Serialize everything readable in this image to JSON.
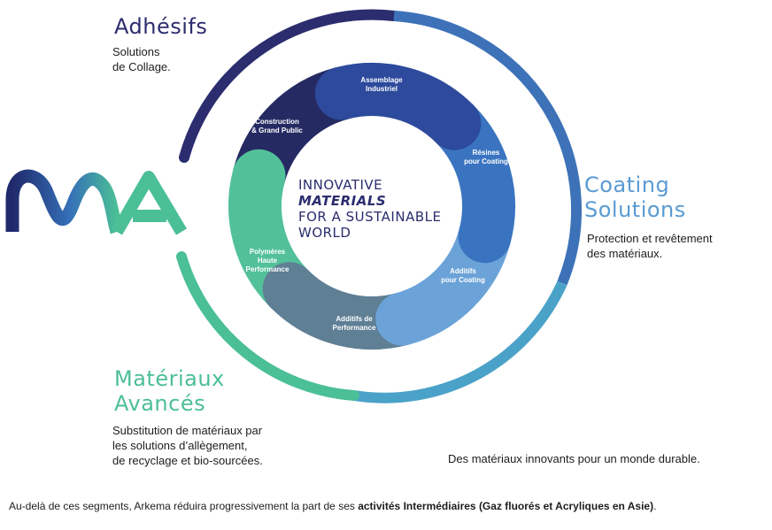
{
  "segments": {
    "adhesifs": {
      "title": "Adhésifs",
      "description": [
        "Solutions",
        "de Collage."
      ],
      "color": "#2b2d6e"
    },
    "coating": {
      "title": [
        "Coating",
        "Solutions"
      ],
      "description": [
        "Protection et revêtement",
        "des matériaux."
      ],
      "color": "#5a9bd3"
    },
    "materiaux": {
      "title": [
        "Matériaux",
        "Avancés"
      ],
      "description": [
        "Substitution de matériaux par",
        "les solutions d’allègement,",
        "de recyclage et bio-sourcées."
      ],
      "color": "#4bbf96"
    }
  },
  "center": {
    "lines": [
      "INNOVATIVE",
      "MATERIALS",
      "FOR A SUSTAINABLE",
      "WORLD"
    ]
  },
  "ring_segments": [
    {
      "lines": [
        "Assemblage",
        "Industriel"
      ],
      "color": "#2d4a9c"
    },
    {
      "lines": [
        "Résines",
        "pour Coating"
      ],
      "color": "#3a74c1"
    },
    {
      "lines": [
        "Additifs",
        "pour Coating"
      ],
      "color": "#6ba3d8"
    },
    {
      "lines": [
        "Additifs de",
        "Performance"
      ],
      "color": "#5f7f95"
    },
    {
      "lines": [
        "Polymères",
        "Haute",
        "Performance"
      ],
      "color": "#52c19a"
    },
    {
      "lines": [
        "Construction",
        "& Grand Public"
      ],
      "color": "#252a63"
    }
  ],
  "logo": {
    "text": "MA",
    "colors": [
      "#1f2a6b",
      "#3570b8",
      "#4bbf96"
    ]
  },
  "tagline": "Des matériaux innovants pour un monde durable.",
  "footer": {
    "prefix": "Au-delà de ces segments, Arkema réduira progressivement la part de ses ",
    "bold": "activités Intermédiaires (Gaz fluorés et Acryliques en Asie)",
    "suffix": "."
  }
}
